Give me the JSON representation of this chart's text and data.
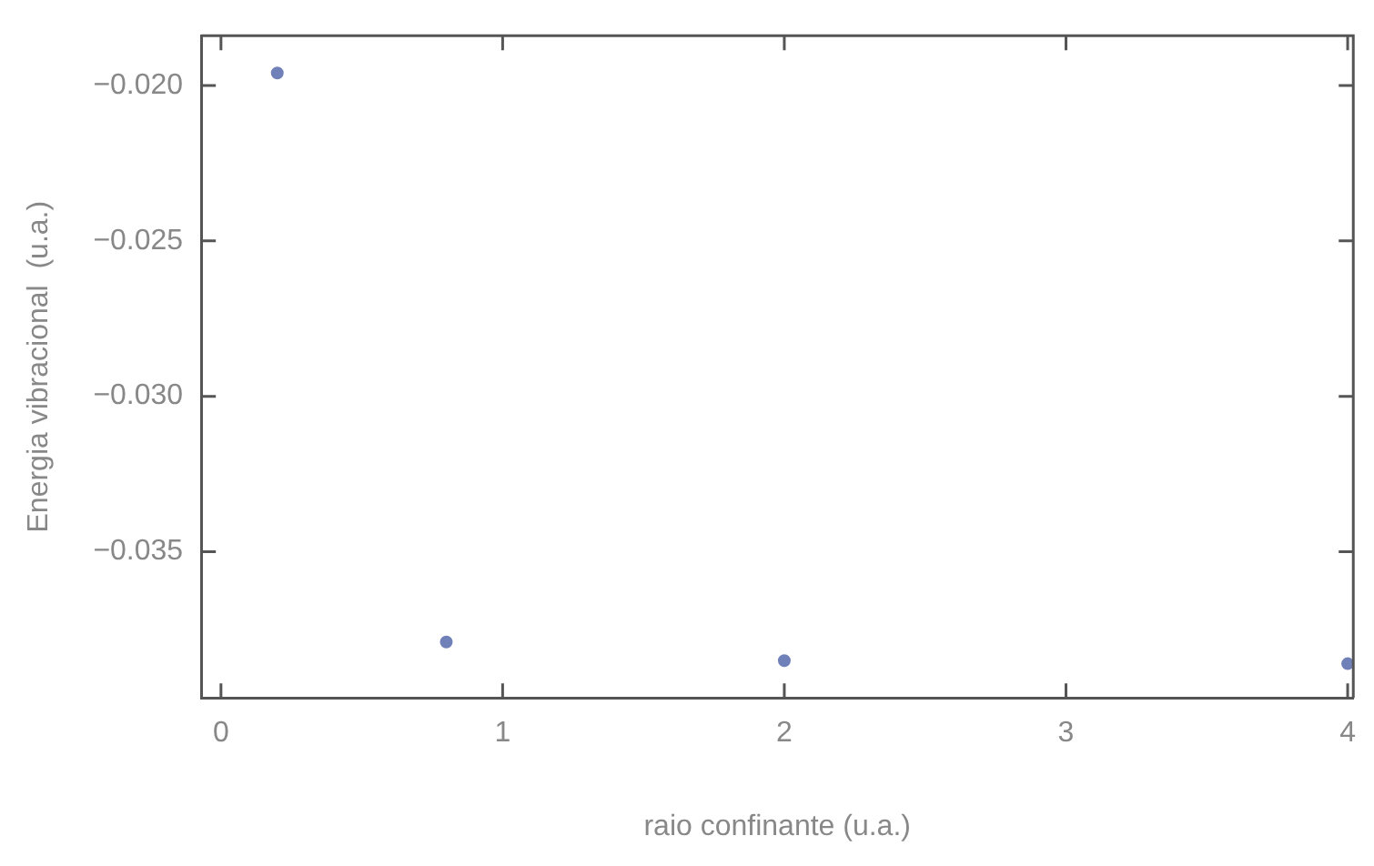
{
  "chart_data": {
    "type": "scatter",
    "xlabel": "raio confinante (u.a.)",
    "ylabel": "Energia vibracional  (u.a.)",
    "x": [
      0.2,
      0.8,
      2,
      4
    ],
    "series": [
      {
        "color": "#7080b8",
        "values": [
          -0.0196,
          -0.0379,
          -0.0385,
          -0.0386
        ]
      }
    ],
    "xlim": [
      -0.07,
      4.02
    ],
    "xticks": [
      0,
      1,
      2,
      3,
      4
    ],
    "ylim": [
      -0.0397,
      -0.0184
    ],
    "yticks": [
      {
        "value": -0.02,
        "label": "−0.020"
      },
      {
        "value": -0.025,
        "label": "−0.025"
      },
      {
        "value": -0.03,
        "label": "−0.030"
      },
      {
        "value": -0.035,
        "label": "−0.035"
      }
    ],
    "marker": "circle",
    "grid": false,
    "legend": false
  }
}
